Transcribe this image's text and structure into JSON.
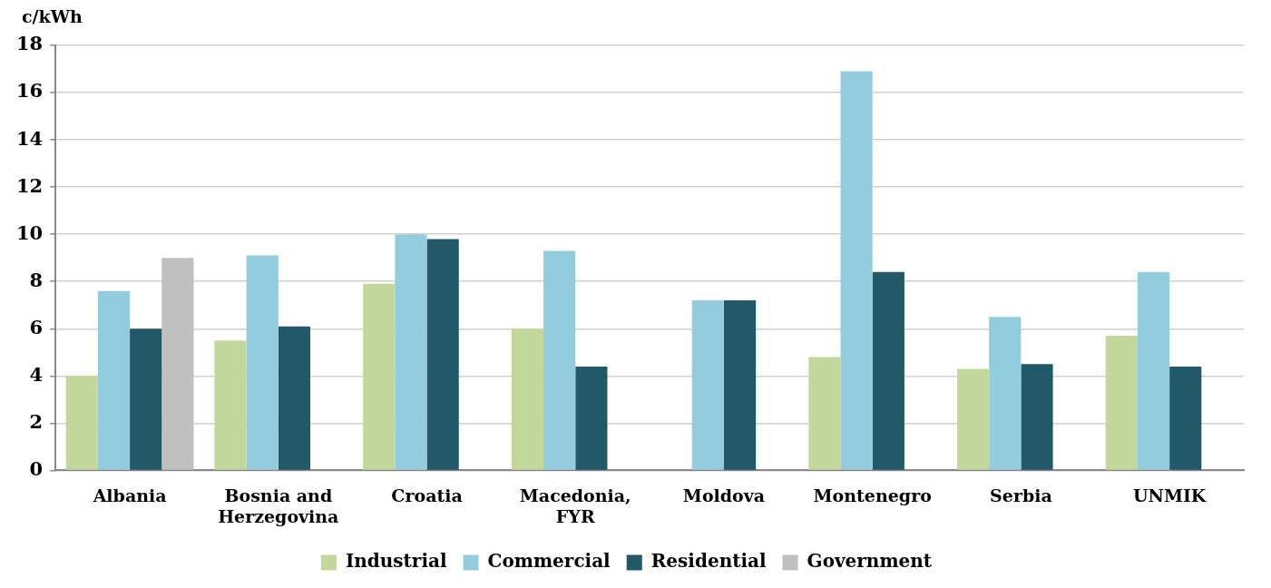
{
  "chart_data": {
    "type": "bar",
    "ylabel": "c/kWh",
    "categories": [
      "Albania",
      "Bosnia and Herzegovina",
      "Croatia",
      "Macedonia, FYR",
      "Moldova",
      "Montenegro",
      "Serbia",
      "UNMIK"
    ],
    "series": [
      {
        "name": "Industrial",
        "color": "#c4d79b",
        "values": [
          4.0,
          5.5,
          7.9,
          6.0,
          null,
          4.8,
          4.3,
          5.7
        ]
      },
      {
        "name": "Commercial",
        "color": "#93cddd",
        "values": [
          7.6,
          9.1,
          10.0,
          9.3,
          7.2,
          16.9,
          6.5,
          8.4
        ]
      },
      {
        "name": "Residential",
        "color": "#215968",
        "values": [
          6.0,
          6.1,
          9.8,
          4.4,
          7.2,
          8.4,
          4.5,
          4.4
        ]
      },
      {
        "name": "Government",
        "color": "#bfbfbf",
        "values": [
          9.0,
          null,
          null,
          null,
          null,
          null,
          null,
          null
        ]
      }
    ],
    "ylim": [
      0,
      18
    ],
    "yticks": [
      0,
      2,
      4,
      6,
      8,
      10,
      12,
      14,
      16,
      18
    ],
    "grid": "y",
    "legend": "bottom"
  }
}
